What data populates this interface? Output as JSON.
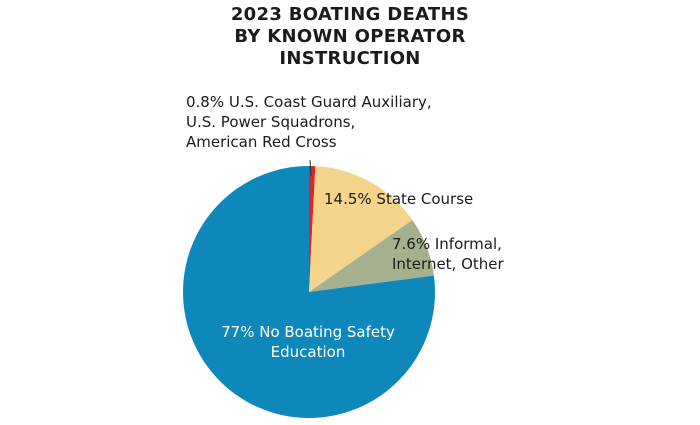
{
  "title": {
    "lines": [
      "2023 BOATING DEATHS",
      "BY KNOWN OPERATOR",
      "INSTRUCTION"
    ]
  },
  "labels": {
    "auxiliary": [
      "0.8% U.S. Coast Guard Auxiliary,",
      "U.S. Power Squadrons,",
      "American Red Cross"
    ],
    "state": [
      "14.5% State Course"
    ],
    "informal": [
      "7.6% Informal,",
      "Internet, Other"
    ],
    "none": [
      "77% No Boating Safety",
      "Education"
    ]
  },
  "colors": {
    "auxiliary": "#d9262b",
    "state": "#f3d48a",
    "informal": "#a5b18e",
    "none": "#0e87ba"
  },
  "chart_data": {
    "type": "pie",
    "title": "2023 BOATING DEATHS BY KNOWN OPERATOR INSTRUCTION",
    "categories": [
      "U.S. Coast Guard Auxiliary, U.S. Power Squadrons, American Red Cross",
      "State Course",
      "Informal, Internet, Other",
      "No Boating Safety Education"
    ],
    "values": [
      0.8,
      14.5,
      7.6,
      77
    ],
    "unit": "%",
    "colors": [
      "#d9262b",
      "#f3d48a",
      "#a5b18e",
      "#0e87ba"
    ],
    "start_angle": "12 o'clock, clockwise",
    "legend": "none (direct labels)"
  }
}
